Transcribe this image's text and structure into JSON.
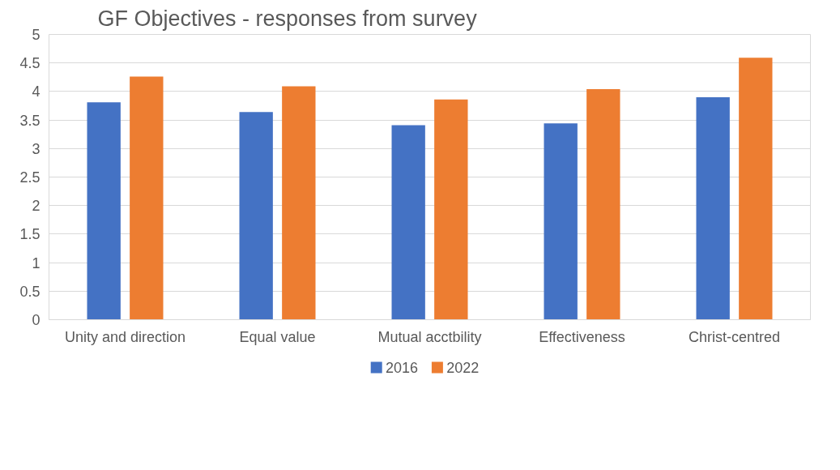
{
  "chart_data": {
    "type": "bar",
    "title": "GF Objectives - responses from survey",
    "categories": [
      "Unity and direction",
      "Equal value",
      "Mutual acctbility",
      "Effectiveness",
      "Christ-centred"
    ],
    "series": [
      {
        "name": "2016",
        "color": "#4472c4",
        "values": [
          3.81,
          3.64,
          3.41,
          3.44,
          3.9
        ]
      },
      {
        "name": "2022",
        "color": "#ed7d31",
        "values": [
          4.26,
          4.09,
          3.86,
          4.04,
          4.59
        ]
      }
    ],
    "ylim": [
      0,
      5
    ],
    "yticks": [
      0,
      {
        "value": 0.5,
        "label": "0.5"
      },
      1,
      {
        "value": 1.5,
        "label": "1.5"
      },
      2,
      {
        "value": 2.5,
        "label": "2.5"
      },
      3,
      {
        "value": 3.5,
        "label": "3.5"
      },
      4,
      {
        "value": 4.5,
        "label": "4.5"
      },
      5
    ],
    "grid": "y",
    "legend": "bottom"
  }
}
